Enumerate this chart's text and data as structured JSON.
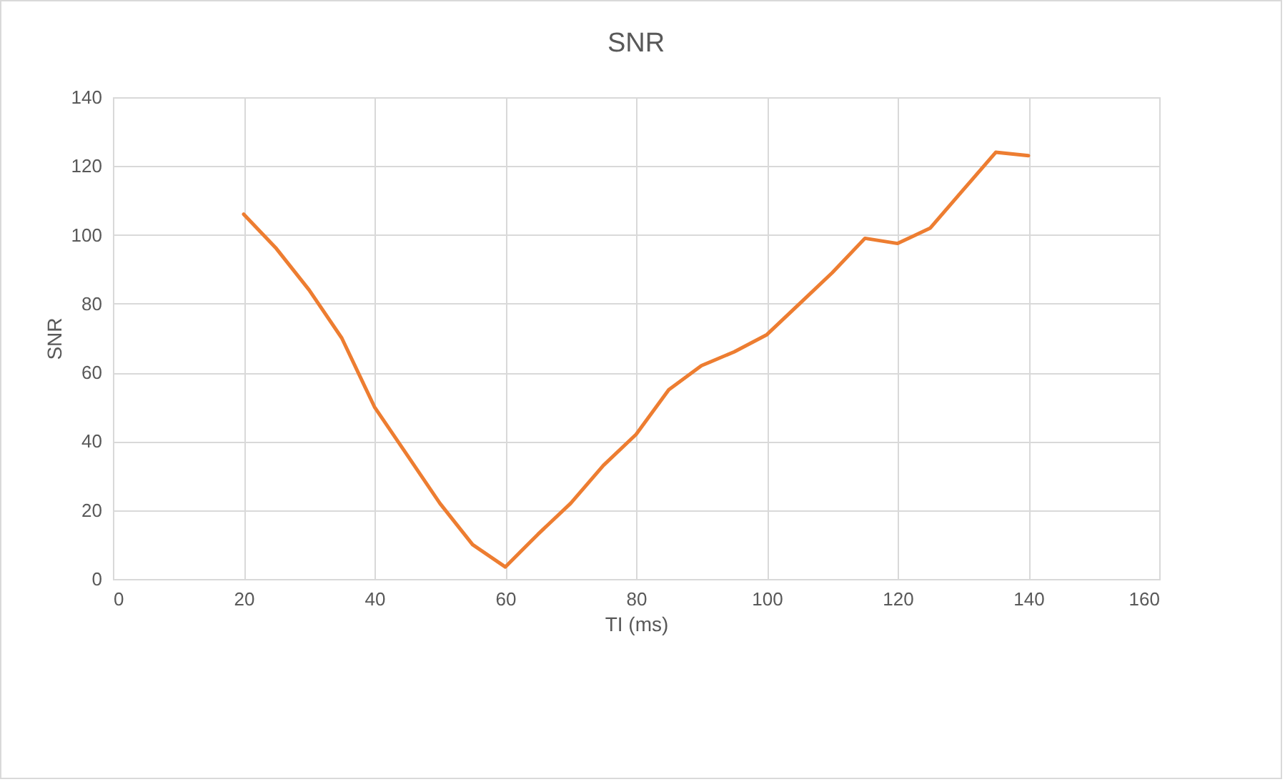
{
  "chart_data": {
    "type": "line",
    "title": "SNR",
    "xlabel": "TI (ms)",
    "ylabel": "SNR",
    "x": [
      20,
      25,
      30,
      35,
      40,
      45,
      50,
      55,
      60,
      65,
      70,
      75,
      80,
      85,
      90,
      95,
      100,
      105,
      110,
      115,
      120,
      125,
      130,
      135,
      140
    ],
    "series": [
      {
        "color": "#ed7d31",
        "values": [
          106,
          96,
          84,
          70,
          50,
          36,
          22,
          10,
          3.5,
          13,
          22,
          33,
          42,
          55,
          62,
          66,
          71,
          80,
          89,
          99,
          97.5,
          102,
          113,
          124,
          123
        ]
      }
    ],
    "xlim": [
      0,
      160
    ],
    "xticks": [
      0,
      20,
      40,
      60,
      80,
      100,
      120,
      140,
      160
    ],
    "ylim": [
      0,
      140
    ],
    "yticks": [
      0,
      20,
      40,
      60,
      80,
      100,
      120,
      140
    ],
    "grid": true,
    "legend": false,
    "marker": "none",
    "line_style": "solid"
  }
}
